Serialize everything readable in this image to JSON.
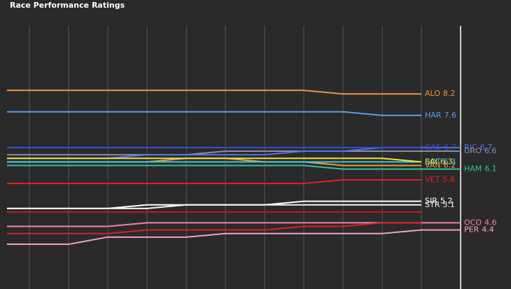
{
  "chart_data": {
    "type": "line",
    "title": "Race Performance Ratings",
    "categories": [
      null,
      null,
      null,
      null,
      null,
      null,
      null,
      null,
      null,
      null,
      null,
      null
    ],
    "ylim": [
      2.75,
      10.1
    ],
    "grid": true,
    "series": [
      {
        "name": "ALO",
        "color": "#f0913a",
        "values": [
          8.3,
          8.3,
          8.3,
          8.3,
          8.3,
          8.3,
          8.3,
          8.3,
          8.2,
          8.2,
          8.2,
          null
        ],
        "value_labels": [
          null,
          null,
          null,
          null,
          null,
          null,
          null,
          null,
          null,
          null,
          "8.2",
          null
        ]
      },
      {
        "name": "HAR",
        "color": "#5b9bef",
        "values": [
          7.7,
          7.7,
          7.7,
          7.7,
          7.7,
          7.7,
          7.7,
          7.7,
          7.7,
          7.6,
          7.6,
          null
        ],
        "value_labels": [
          null,
          null,
          null,
          null,
          null,
          null,
          null,
          null,
          null,
          null,
          "7.6",
          null
        ]
      },
      {
        "name": "GRO",
        "color": "#8c8ca8",
        "values": [
          6.5,
          6.5,
          6.5,
          6.5,
          6.5,
          6.6,
          6.6,
          6.6,
          6.6,
          6.6,
          6.6,
          6.6
        ],
        "value_labels": [
          null,
          null,
          null,
          null,
          null,
          null,
          null,
          null,
          null,
          null,
          null,
          "6.6"
        ]
      },
      {
        "name": "RIC",
        "color": "#4f74e8",
        "values": [
          6.4,
          6.4,
          6.4,
          6.5,
          6.5,
          6.5,
          6.5,
          6.6,
          6.6,
          6.7,
          6.7,
          6.7
        ],
        "value_labels": [
          null,
          null,
          null,
          null,
          null,
          null,
          null,
          null,
          null,
          null,
          null,
          "6.7"
        ]
      },
      {
        "name": "GAS",
        "color": "#3050d8",
        "values": [
          6.7,
          6.7,
          6.7,
          6.7,
          6.7,
          6.7,
          6.7,
          6.7,
          6.7,
          6.7,
          6.7,
          null
        ],
        "value_labels": [
          null,
          null,
          null,
          null,
          null,
          null,
          null,
          null,
          null,
          null,
          "6.7",
          null
        ]
      },
      {
        "name": "VAN",
        "color": "#e0a040",
        "values": [
          6.3,
          6.3,
          6.3,
          6.3,
          6.4,
          6.4,
          6.3,
          6.3,
          6.2,
          6.2,
          6.2,
          null
        ],
        "value_labels": [
          null,
          null,
          null,
          null,
          null,
          null,
          null,
          null,
          null,
          null,
          "6.2",
          null
        ]
      },
      {
        "name": "BOT",
        "color": "#40c8e0",
        "values": [
          6.3,
          6.3,
          6.3,
          6.3,
          6.3,
          6.3,
          6.3,
          6.3,
          6.3,
          6.3,
          6.3,
          null
        ],
        "value_labels": [
          null,
          null,
          null,
          null,
          null,
          null,
          null,
          null,
          null,
          null,
          "6.3",
          null
        ]
      },
      {
        "name": "SAI",
        "color": "#f0e040",
        "values": [
          6.4,
          6.4,
          6.4,
          6.4,
          6.4,
          6.4,
          6.4,
          6.4,
          6.4,
          6.4,
          6.3,
          null
        ],
        "value_labels": [
          null,
          null,
          null,
          null,
          null,
          null,
          null,
          null,
          null,
          null,
          "6.3",
          null
        ]
      },
      {
        "name": "HAM",
        "color": "#30c0a0",
        "values": [
          6.2,
          6.2,
          6.2,
          6.2,
          6.2,
          6.2,
          6.2,
          6.2,
          6.1,
          6.1,
          6.1,
          6.1
        ],
        "value_labels": [
          null,
          null,
          null,
          null,
          null,
          null,
          null,
          null,
          null,
          null,
          null,
          "6.1"
        ]
      },
      {
        "name": "VET",
        "color": "#e02020",
        "values": [
          5.7,
          5.7,
          5.7,
          5.7,
          5.7,
          5.7,
          5.7,
          5.7,
          5.8,
          5.8,
          5.8,
          null
        ],
        "value_labels": [
          null,
          null,
          null,
          null,
          null,
          null,
          null,
          null,
          null,
          null,
          "5.8",
          null
        ]
      },
      {
        "name": "SIR",
        "color": "#ffffff",
        "values": [
          5.0,
          5.0,
          5.0,
          5.1,
          5.1,
          5.1,
          5.1,
          5.2,
          5.2,
          5.2,
          5.2,
          null
        ],
        "value_labels": [
          null,
          null,
          null,
          null,
          null,
          null,
          null,
          null,
          null,
          null,
          "5.2",
          null
        ]
      },
      {
        "name": "STR",
        "color": "#f4f4f4",
        "values": [
          5.0,
          5.0,
          5.0,
          5.0,
          5.1,
          5.1,
          5.1,
          5.1,
          5.1,
          5.1,
          5.1,
          null
        ],
        "value_labels": [
          null,
          null,
          null,
          null,
          null,
          null,
          null,
          null,
          null,
          null,
          "5.1",
          null
        ]
      },
      {
        "color": "#c01818",
        "values": [
          4.9,
          4.9,
          4.9,
          4.9,
          4.9,
          4.9,
          4.9,
          4.9,
          4.9,
          4.9,
          4.9,
          null
        ]
      },
      {
        "name": "OCO",
        "color": "#f080a8",
        "values": [
          4.5,
          4.5,
          4.5,
          4.6,
          4.6,
          4.6,
          4.6,
          4.6,
          4.6,
          4.6,
          4.6,
          4.6
        ],
        "value_labels": [
          null,
          null,
          null,
          null,
          null,
          null,
          null,
          null,
          null,
          null,
          null,
          "4.6"
        ]
      },
      {
        "color": "#d82020",
        "values": [
          4.3,
          4.3,
          4.3,
          4.4,
          4.4,
          4.4,
          4.4,
          4.5,
          4.5,
          4.6,
          4.6,
          null
        ]
      },
      {
        "name": "PER",
        "color": "#f0a0c8",
        "values": [
          4.0,
          4.0,
          4.2,
          4.2,
          4.2,
          4.3,
          4.3,
          4.3,
          4.3,
          4.3,
          4.4,
          4.4
        ],
        "value_labels": [
          null,
          null,
          null,
          null,
          null,
          null,
          null,
          null,
          null,
          null,
          null,
          "4.4"
        ]
      }
    ]
  }
}
